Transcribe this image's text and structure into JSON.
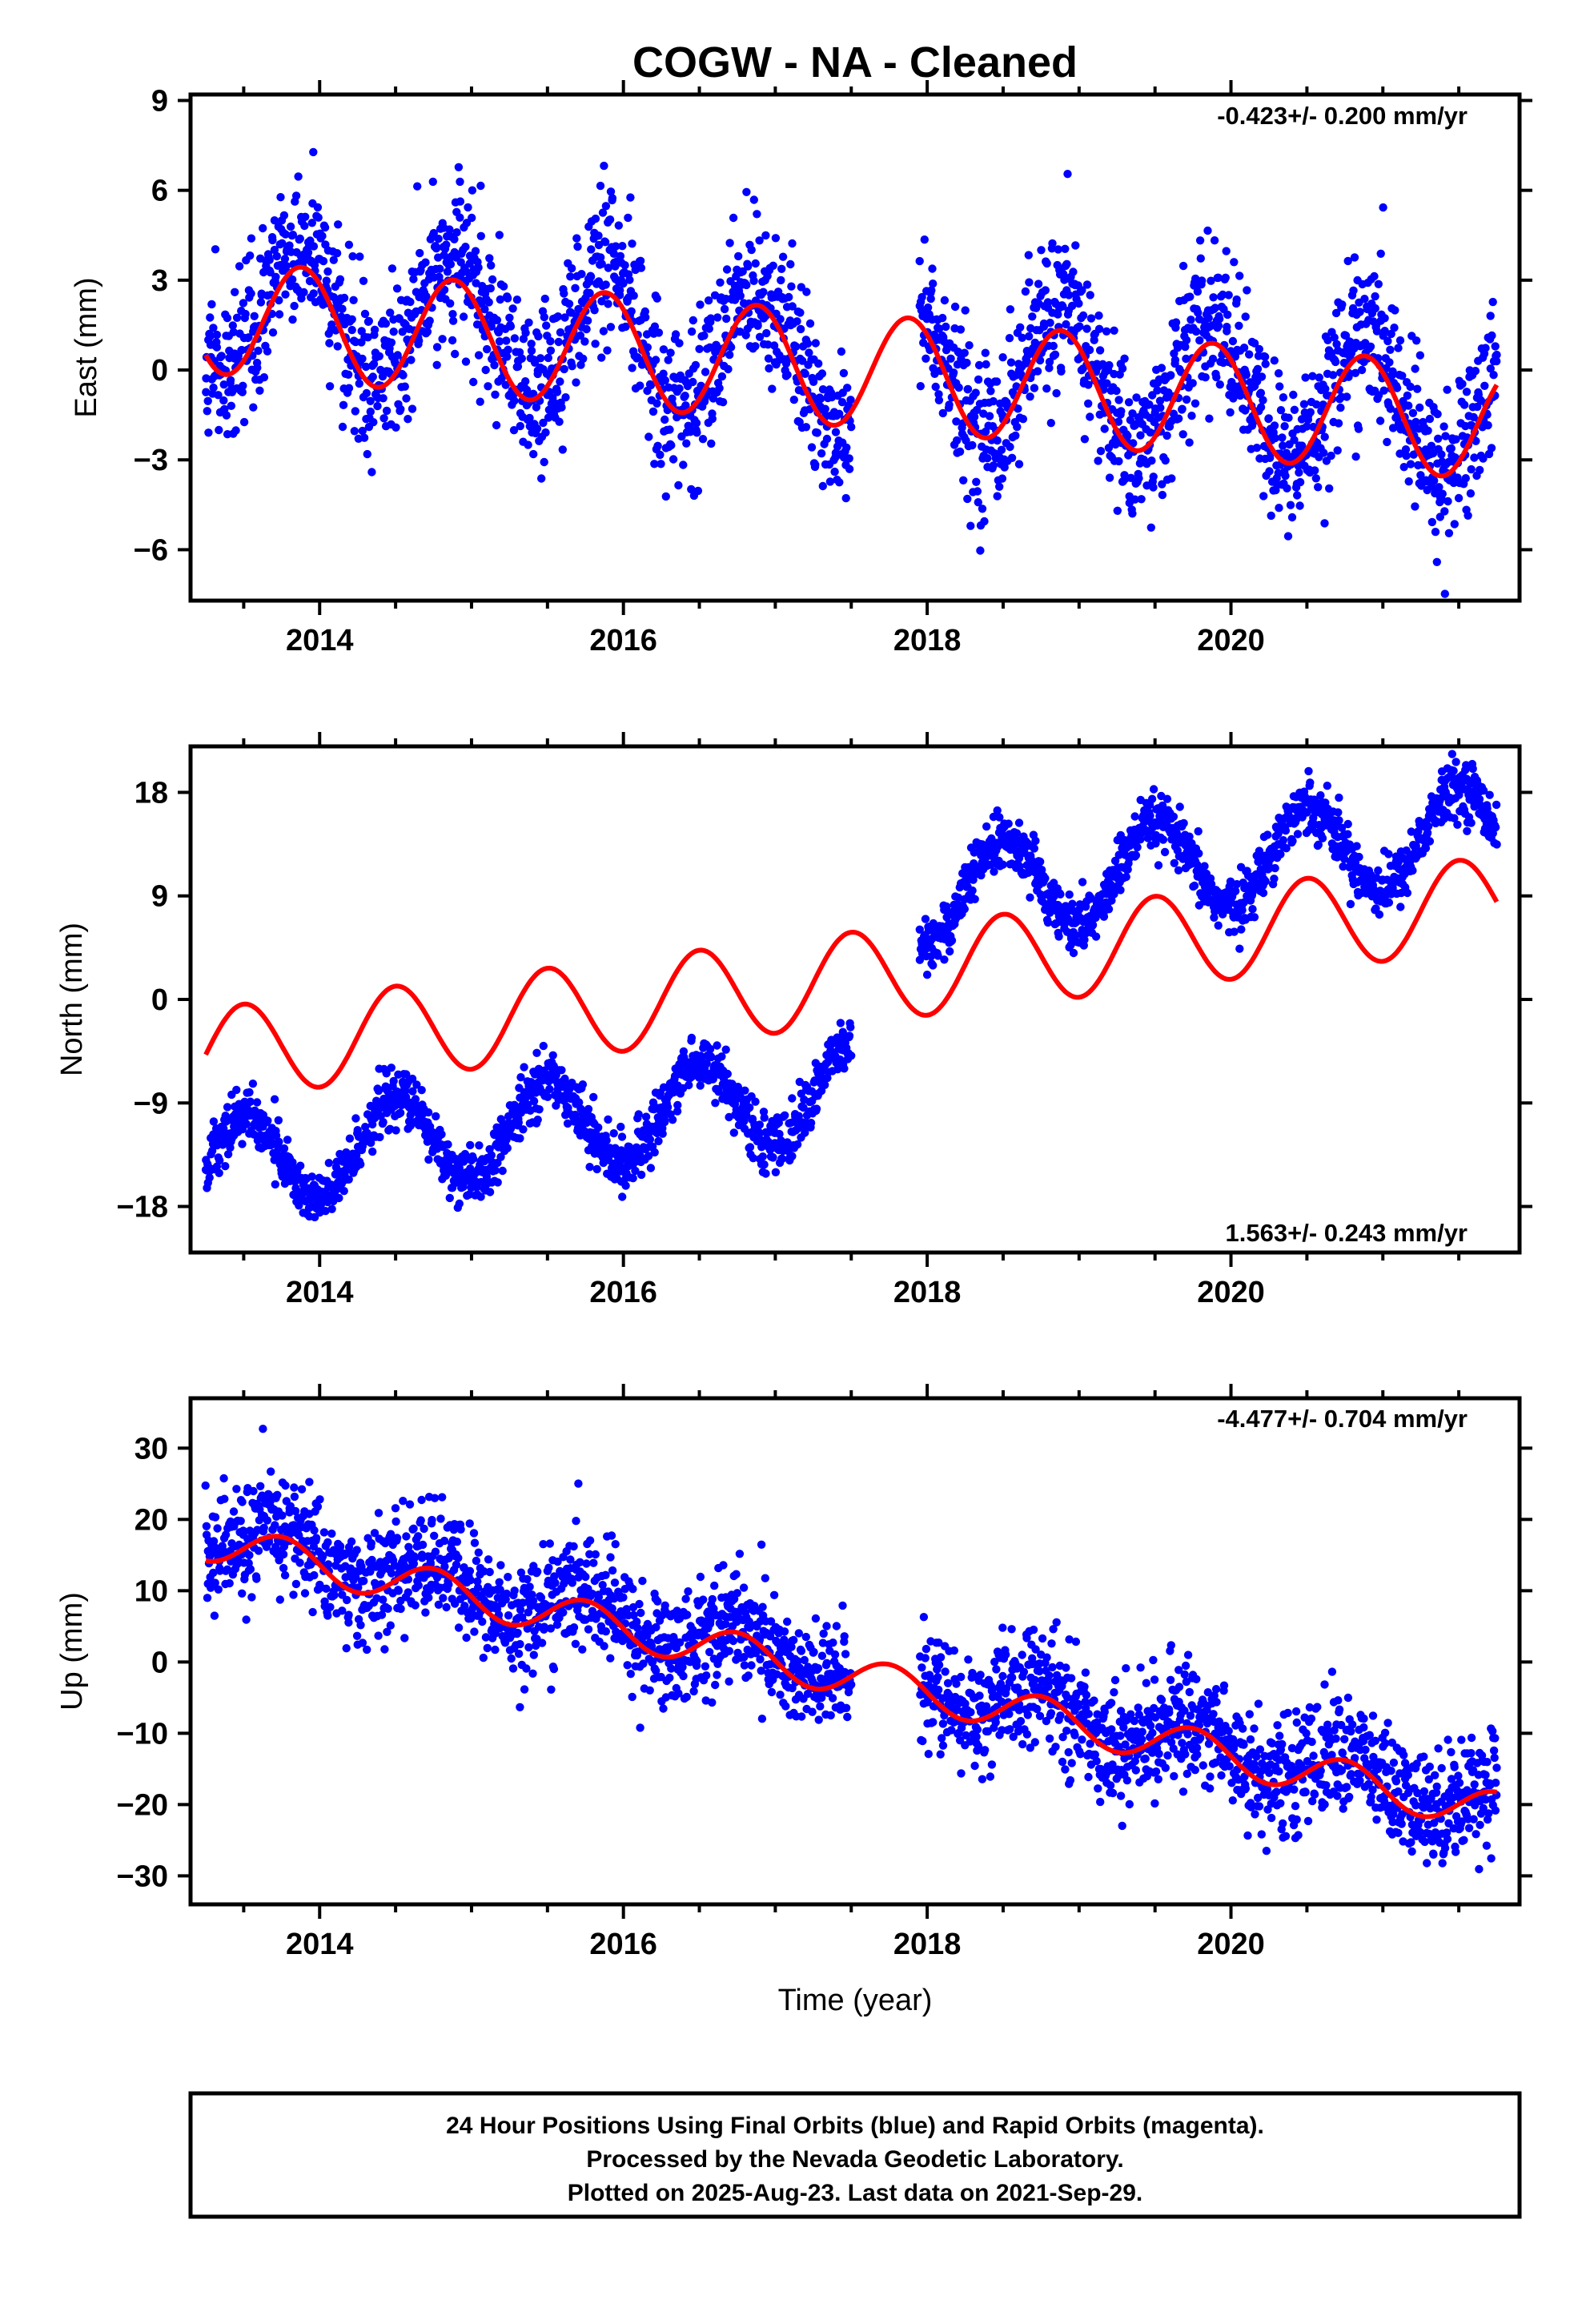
{
  "title": "COGW  - NA - Cleaned",
  "x_axis": {
    "label": "Time (year)",
    "range": [
      2013.15,
      2021.9
    ],
    "major_ticks": [
      "2014",
      "2016",
      "2018",
      "2020"
    ],
    "minor_tick_step": 0.5
  },
  "colors": {
    "data_points": "#0000ff",
    "model_line": "#ff0000",
    "frame": "#000000"
  },
  "chart_data": [
    {
      "type": "scatter",
      "name": "east",
      "ylabel": "East (mm)",
      "ylim": [
        -7.7,
        9.2
      ],
      "yticks": [
        -6,
        -3,
        0,
        3,
        6,
        9
      ],
      "ytick_labels": [
        "−6",
        "−3",
        "0",
        "3",
        "6",
        "9"
      ],
      "rate_label": "-0.423+/- 0.200 mm/yr",
      "rate_position": "top-right",
      "data_gap": [
        2017.5,
        2017.95
      ],
      "observations": {
        "start": 2013.25,
        "end": 2021.75,
        "trend_intercept": 2.2,
        "trend_slope": -0.423,
        "annual_amplitude": 2.2,
        "annual_peak": 2013.88,
        "scatter": 1.3
      },
      "model_curve": {
        "type": "line",
        "start": 2013.25,
        "end": 2021.75,
        "intercept": 1.8,
        "slope": -0.423,
        "annual_amplitude": 1.9,
        "annual_peak": 2013.88
      }
    },
    {
      "type": "scatter",
      "name": "north",
      "ylabel": "North (mm)",
      "ylim": [
        -22,
        22
      ],
      "yticks": [
        -18,
        -9,
        0,
        9,
        18
      ],
      "ytick_labels": [
        "−18",
        "−9",
        "0",
        "9",
        "18"
      ],
      "rate_label": "1.563+/- 0.243 mm/yr",
      "rate_position": "bottom-right",
      "data_gap": [
        2017.5,
        2017.95
      ],
      "offset_events": [
        {
          "year": 2017.6,
          "jump": 16
        }
      ],
      "observations": {
        "start": 2013.25,
        "end": 2021.75,
        "trend_intercept": -14.5,
        "trend_slope": 1.563,
        "annual_amplitude": 4.0,
        "annual_peak": 2013.5,
        "scatter": 1.2
      },
      "model_curve": {
        "type": "line",
        "start": 2013.25,
        "end": 2021.75,
        "intercept": -4.8,
        "slope": 1.563,
        "annual_amplitude": 4.0,
        "annual_peak": 2013.5
      }
    },
    {
      "type": "scatter",
      "name": "up",
      "ylabel": "Up (mm)",
      "ylim": [
        -34,
        37
      ],
      "yticks": [
        -30,
        -20,
        -10,
        0,
        10,
        20,
        30
      ],
      "ytick_labels": [
        "−30",
        "−20",
        "−10",
        "0",
        "10",
        "20",
        "30"
      ],
      "rate_label": "-4.477+/- 0.704 mm/yr",
      "rate_position": "top-right",
      "data_gap": [
        2017.5,
        2017.95
      ],
      "observations": {
        "start": 2013.25,
        "end": 2021.75,
        "trend_intercept": 18.0,
        "trend_slope": -4.477,
        "annual_amplitude": 3.0,
        "annual_peak": 2013.75,
        "scatter": 4.0
      },
      "model_curve": {
        "type": "line",
        "start": 2013.25,
        "end": 2021.75,
        "intercept": 17.0,
        "slope": -4.477,
        "annual_amplitude": 2.8,
        "annual_peak": 2013.75
      }
    }
  ],
  "footer": {
    "line1": "24 Hour Positions Using Final Orbits (blue) and Rapid Orbits (magenta).",
    "line2": "Processed by the Nevada Geodetic Laboratory.",
    "line3": "Plotted on 2025-Aug-23. Last data on 2021-Sep-29."
  }
}
